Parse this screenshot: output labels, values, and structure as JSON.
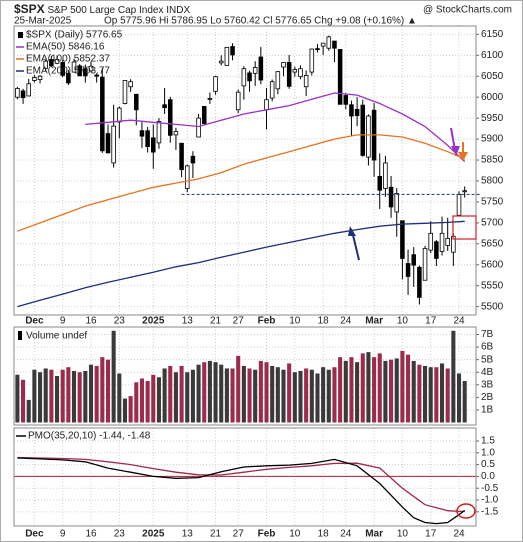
{
  "header": {
    "symbol": "$SPX",
    "name": "S&P 500 Large Cap Index",
    "exchange": "INDX",
    "credit": "@ StockCharts.com",
    "date": "25-Mar-2025",
    "quote": "Op 5775.96 Hi 5786.95 Lo 5760.42 Cl 5776.65 Chg +9.08 (+0.16%) ▲"
  },
  "chart_data": [
    {
      "type": "candlestick",
      "legend": "$SPX (Daily) 5776.65",
      "xlim": [
        -0.6,
        81
      ],
      "ylim": [
        5480,
        6170
      ],
      "grid": true,
      "yticks": [
        5500,
        5550,
        5600,
        5650,
        5700,
        5750,
        5800,
        5850,
        5900,
        5950,
        6000,
        6050,
        6100,
        6150
      ],
      "xticks": [
        {
          "value": 3,
          "label": "Dec"
        },
        {
          "value": 8,
          "label": "9"
        },
        {
          "value": 13,
          "label": "16"
        },
        {
          "value": 18,
          "label": "23"
        },
        {
          "value": 24,
          "label": "2025"
        },
        {
          "value": 30,
          "label": "13"
        },
        {
          "value": 35,
          "label": "21"
        },
        {
          "value": 39,
          "label": "27"
        },
        {
          "value": 44,
          "label": "Feb"
        },
        {
          "value": 49,
          "label": "10"
        },
        {
          "value": 54,
          "label": "18"
        },
        {
          "value": 58,
          "label": "24"
        },
        {
          "value": 63,
          "label": "Mar"
        },
        {
          "value": 68,
          "label": "10"
        },
        {
          "value": 73,
          "label": "17"
        },
        {
          "value": 78,
          "label": "24"
        }
      ],
      "open": [
        6000,
        6015,
        6003,
        6040,
        6042,
        6069,
        6090,
        6081,
        6083,
        6057,
        6060,
        6075,
        6068,
        6063,
        6053,
        6048,
        5913,
        5843,
        5941,
        5985,
        6025,
        6007,
        5920,
        5920,
        5903,
        5891,
        5982,
        5994,
        5910,
        5890,
        5782,
        5859,
        5905,
        5978,
        5996,
        6014,
        6082,
        6076,
        6121,
        5970,
        6027,
        6058,
        6057,
        6096,
        5970,
        5998,
        6020,
        6072,
        6083,
        6060,
        6049,
        6025,
        6060,
        6116,
        6122,
        6117,
        6134,
        6114,
        6004,
        5982,
        5971,
        5981,
        5857,
        5969,
        5811,
        5782,
        5785,
        5726,
        5705,
        5603,
        5624,
        5594,
        5563,
        5635,
        5655,
        5632,
        5646,
        5630,
        5718,
        5775.96
      ],
      "high": [
        6025,
        6020,
        6044,
        6053,
        6053,
        6089,
        6099,
        6099,
        6089,
        6065,
        6092,
        6079,
        6078,
        6085,
        6057,
        6070,
        5935,
        5982,
        5978,
        6040,
        6043,
        6007,
        5941,
        5929,
        5935,
        5950,
        6022,
        6001,
        5927,
        5891,
        5839,
        5871,
        5960,
        5978,
        6011,
        6051,
        6100,
        6119,
        6129,
        6018,
        6074,
        6063,
        6086,
        6120,
        6022,
        6042,
        6062,
        6084,
        6101,
        6073,
        6076,
        6064,
        6116,
        6127,
        6129,
        6147,
        6134,
        6115,
        6010,
        5992,
        6000,
        5994,
        5959,
        5986,
        5866,
        5860,
        5812,
        5783,
        5705,
        5636,
        5642,
        5598,
        5645,
        5704,
        5659,
        5715,
        5712,
        5675,
        5775,
        5786.95
      ],
      "low": [
        5995,
        5984,
        6003,
        6035,
        6033,
        6061,
        6072,
        6079,
        6048,
        6029,
        6059,
        6051,
        6035,
        6059,
        6035,
        5867,
        5866,
        5832,
        5902,
        5983,
        6013,
        5933,
        5879,
        5868,
        5829,
        5877,
        5960,
        5891,
        5874,
        5809,
        5773,
        5807,
        5905,
        5935,
        5984,
        6006,
        6076,
        6075,
        6088,
        5962,
        5994,
        6013,
        6027,
        6031,
        5923,
        5990,
        6007,
        6050,
        6020,
        6049,
        6043,
        6003,
        6052,
        6107,
        6101,
        6111,
        6084,
        5986,
        5971,
        5908,
        5931,
        5858,
        5837,
        5810,
        5733,
        5762,
        5712,
        5667,
        5565,
        5528,
        5547,
        5505,
        5563,
        5628,
        5597,
        5622,
        5633,
        5597,
        5718,
        5760.42
      ],
      "close": [
        6021,
        5999,
        6032,
        6047,
        6050,
        6086,
        6075,
        6090,
        6052,
        6034,
        6084,
        6051,
        6051,
        6074,
        6050,
        5872,
        5867,
        5931,
        5974,
        6040,
        6037,
        5970,
        5907,
        5882,
        5869,
        5942,
        5975,
        5909,
        5918,
        5827,
        5836,
        5843,
        5950,
        5937,
        5997,
        6049,
        6086,
        6119,
        6101,
        6012,
        6068,
        6039,
        6071,
        6041,
        5994,
        6037,
        6061,
        6083,
        6026,
        6066,
        6068,
        6052,
        6115,
        6115,
        6129,
        6144,
        6117,
        5983,
        5983,
        5955,
        5956,
        5861,
        5955,
        5850,
        5778,
        5843,
        5738,
        5770,
        5615,
        5572,
        5599,
        5522,
        5639,
        5675,
        5615,
        5675,
        5663,
        5668,
        5768,
        5776.65
      ],
      "series": [
        {
          "name": "EMA(50) 5846.16",
          "color": "#9b30c8",
          "x": [
            12,
            16,
            20,
            24,
            28,
            32,
            36,
            40,
            44,
            48,
            52,
            56,
            60,
            64,
            68,
            72,
            76,
            79
          ],
          "values": [
            5935,
            5940,
            5945,
            5940,
            5935,
            5930,
            5945,
            5960,
            5970,
            5980,
            5995,
            6010,
            6005,
            5985,
            5960,
            5930,
            5885,
            5846.16
          ]
        },
        {
          "name": "EMA(100) 5852.37",
          "color": "#e8731e",
          "x": [
            0,
            4,
            8,
            12,
            16,
            20,
            24,
            28,
            32,
            36,
            40,
            44,
            48,
            52,
            56,
            60,
            64,
            68,
            72,
            76,
            79
          ],
          "values": [
            5680,
            5700,
            5720,
            5740,
            5755,
            5770,
            5785,
            5795,
            5805,
            5820,
            5840,
            5855,
            5870,
            5885,
            5900,
            5910,
            5910,
            5905,
            5890,
            5870,
            5852.37
          ]
        },
        {
          "name": "EMA(200) 5703.77",
          "color": "#1f2f7a",
          "x": [
            0,
            4,
            8,
            12,
            16,
            20,
            24,
            28,
            32,
            36,
            40,
            44,
            48,
            52,
            56,
            60,
            64,
            68,
            72,
            76,
            79
          ],
          "values": [
            5500,
            5515,
            5530,
            5545,
            5558,
            5570,
            5582,
            5595,
            5605,
            5618,
            5630,
            5642,
            5653,
            5664,
            5675,
            5684,
            5692,
            5697,
            5699,
            5701,
            5703.77
          ]
        }
      ],
      "reference_line": {
        "value": 5768,
        "x_start": 29,
        "color": "#1f2f7a"
      }
    },
    {
      "type": "bar",
      "legend": "Volume undef",
      "ylim": [
        -0.2,
        7.6
      ],
      "up_color": "#3a3a3a",
      "down_color": "#9e2a4c",
      "yticks": [
        {
          "value": 1,
          "label": "1B"
        },
        {
          "value": 2,
          "label": "2B"
        },
        {
          "value": 3,
          "label": "3B"
        },
        {
          "value": 4,
          "label": "4B"
        },
        {
          "value": 5,
          "label": "5B"
        },
        {
          "value": 6,
          "label": "6B"
        },
        {
          "value": 7,
          "label": "7B"
        }
      ],
      "values": [
        3.8,
        3.4,
        1.8,
        4.2,
        4.0,
        4.3,
        4.2,
        3.7,
        4.2,
        4.4,
        4.1,
        4.0,
        4.1,
        4.6,
        4.5,
        5.2,
        5.0,
        7.3,
        3.9,
        1.9,
        2.1,
        3.2,
        3.5,
        3.3,
        3.8,
        3.6,
        4.3,
        4.5,
        4.0,
        4.5,
        4.0,
        4.2,
        4.6,
        4.8,
        4.9,
        4.8,
        4.6,
        4.3,
        4.3,
        5.3,
        4.5,
        4.3,
        4.2,
        4.9,
        4.8,
        4.5,
        4.4,
        4.2,
        4.7,
        4.0,
        4.1,
        4.3,
        4.2,
        3.9,
        4.4,
        4.2,
        4.4,
        5.2,
        4.9,
        5.2,
        4.8,
        5.5,
        5.6,
        5.2,
        5.5,
        4.9,
        5.0,
        5.1,
        5.7,
        5.4,
        4.9,
        4.6,
        4.5,
        4.4,
        4.4,
        4.7,
        4.3,
        7.3,
        3.9,
        3.3
      ]
    },
    {
      "type": "line",
      "legend": "PMO(35,20,10) -1.44, -1.48",
      "ylim": [
        -2.1,
        2.05
      ],
      "zero_line": {
        "value": 0,
        "color": "#b02030"
      },
      "yticks": [
        1.5,
        {
          "value": 1,
          "label": "1.0"
        },
        0.5,
        {
          "value": 0,
          "label": "0.0"
        },
        -0.5,
        {
          "value": -1,
          "label": "-1.0"
        },
        -1.5
      ],
      "xticks": [
        {
          "value": 3,
          "label": "Dec"
        },
        {
          "value": 8,
          "label": "9"
        },
        {
          "value": 13,
          "label": "16"
        },
        {
          "value": 18,
          "label": "23"
        },
        {
          "value": 24,
          "label": "2025"
        },
        {
          "value": 30,
          "label": "13"
        },
        {
          "value": 35,
          "label": "21"
        },
        {
          "value": 39,
          "label": "27"
        },
        {
          "value": 44,
          "label": "Feb"
        },
        {
          "value": 49,
          "label": "10"
        },
        {
          "value": 54,
          "label": "18"
        },
        {
          "value": 58,
          "label": "24"
        },
        {
          "value": 63,
          "label": "Mar"
        },
        {
          "value": 68,
          "label": "10"
        },
        {
          "value": 73,
          "label": "17"
        },
        {
          "value": 78,
          "label": "24"
        }
      ],
      "series": [
        {
          "color": "#9e2a4c",
          "x": [
            0,
            4,
            8,
            12,
            16,
            20,
            24,
            28,
            32,
            36,
            40,
            44,
            48,
            52,
            56,
            60,
            64,
            68,
            72,
            76,
            78,
            79
          ],
          "values": [
            0.8,
            0.78,
            0.76,
            0.72,
            0.62,
            0.5,
            0.33,
            0.18,
            0.07,
            0.06,
            0.18,
            0.3,
            0.38,
            0.45,
            0.55,
            0.56,
            0.35,
            -0.5,
            -1.2,
            -1.45,
            -1.48,
            -1.48
          ]
        },
        {
          "color": "#000000",
          "x": [
            0,
            4,
            8,
            12,
            16,
            20,
            24,
            28,
            32,
            36,
            40,
            44,
            48,
            52,
            56,
            60,
            64,
            68,
            70,
            72,
            74,
            76,
            78,
            79
          ],
          "values": [
            0.78,
            0.74,
            0.7,
            0.62,
            0.35,
            0.18,
            0.0,
            -0.08,
            -0.05,
            0.2,
            0.4,
            0.45,
            0.48,
            0.55,
            0.72,
            0.45,
            -0.3,
            -1.3,
            -1.75,
            -1.95,
            -2.0,
            -1.95,
            -1.62,
            -1.44
          ]
        }
      ]
    }
  ]
}
